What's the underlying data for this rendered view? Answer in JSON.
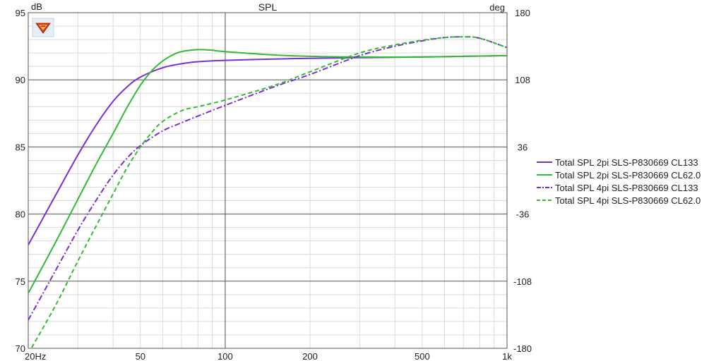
{
  "chart_data": {
    "type": "line",
    "title": "SPL",
    "left_unit": "dB",
    "right_unit": "deg",
    "x_scale": "log",
    "xlim": [
      20,
      1000
    ],
    "ylim": [
      70,
      95
    ],
    "ylim_right": [
      -180,
      180
    ],
    "grid": true,
    "legend_position": "right",
    "x_tick_labels": [
      {
        "value": 20,
        "label": "20Hz"
      },
      {
        "value": 50,
        "label": "50"
      },
      {
        "value": 100,
        "label": "100"
      },
      {
        "value": 200,
        "label": "200"
      },
      {
        "value": 500,
        "label": "500"
      },
      {
        "value": 1000,
        "label": "1k"
      }
    ],
    "y_tick_labels": [
      {
        "value": 95,
        "label": "95"
      },
      {
        "value": 90,
        "label": "90"
      },
      {
        "value": 85,
        "label": "85"
      },
      {
        "value": 80,
        "label": "80"
      },
      {
        "value": 75,
        "label": "75"
      },
      {
        "value": 70,
        "label": "70"
      }
    ],
    "y_right_tick_labels": [
      {
        "value": 180,
        "label": "180"
      },
      {
        "value": 108,
        "label": "108"
      },
      {
        "value": 36,
        "label": "36"
      },
      {
        "value": -36,
        "label": "-36"
      },
      {
        "value": -108,
        "label": "-108"
      },
      {
        "value": -180,
        "label": "-180"
      }
    ],
    "series": [
      {
        "name": "Total SPL 2pi SLS-P830669 CL133",
        "color": "#7b2fd1",
        "style": "solid",
        "x": [
          20,
          25,
          30,
          35,
          40,
          45,
          50,
          60,
          70,
          80,
          100,
          150,
          200,
          300,
          500,
          700,
          1000
        ],
        "y": [
          77.7,
          81.4,
          84.4,
          86.7,
          88.4,
          89.5,
          90.2,
          90.9,
          91.2,
          91.35,
          91.45,
          91.55,
          91.6,
          91.65,
          91.7,
          91.75,
          91.8
        ]
      },
      {
        "name": "Total SPL 2pi SLS-P830669 CL62.0",
        "color": "#33bb33",
        "style": "solid",
        "x": [
          20,
          25,
          30,
          35,
          40,
          45,
          50,
          55,
          60,
          65,
          70,
          80,
          90,
          100,
          150,
          200,
          300,
          500,
          700,
          1000
        ],
        "y": [
          74.1,
          77.9,
          81.1,
          83.8,
          86.0,
          88.0,
          89.6,
          90.7,
          91.4,
          91.85,
          92.1,
          92.25,
          92.2,
          92.1,
          91.85,
          91.75,
          91.7,
          91.7,
          91.75,
          91.8
        ]
      },
      {
        "name": "Total SPL 4pi SLS-P830669 CL133",
        "color": "#7b2fd1",
        "style": "dashdot",
        "x": [
          20,
          25,
          30,
          35,
          40,
          45,
          50,
          60,
          70,
          80,
          100,
          150,
          200,
          300,
          400,
          500,
          600,
          700,
          800,
          1000
        ],
        "y": [
          72.1,
          75.8,
          78.8,
          81.1,
          82.9,
          84.2,
          85.1,
          86.2,
          86.8,
          87.3,
          88.1,
          89.5,
          90.4,
          91.8,
          92.5,
          92.9,
          93.15,
          93.2,
          93.1,
          92.4
        ]
      },
      {
        "name": "Total SPL 4pi SLS-P830669 CL62.0",
        "color": "#33bb33",
        "style": "dashed",
        "x": [
          20,
          25,
          30,
          35,
          40,
          45,
          50,
          55,
          60,
          70,
          80,
          100,
          150,
          200,
          300,
          400,
          500,
          600,
          700,
          800,
          1000
        ],
        "y": [
          69.6,
          73.2,
          76.5,
          79.2,
          81.5,
          83.5,
          85.0,
          86.1,
          86.9,
          87.7,
          88.0,
          88.5,
          89.6,
          90.6,
          92.0,
          92.6,
          92.95,
          93.15,
          93.2,
          93.1,
          92.4
        ]
      }
    ]
  }
}
